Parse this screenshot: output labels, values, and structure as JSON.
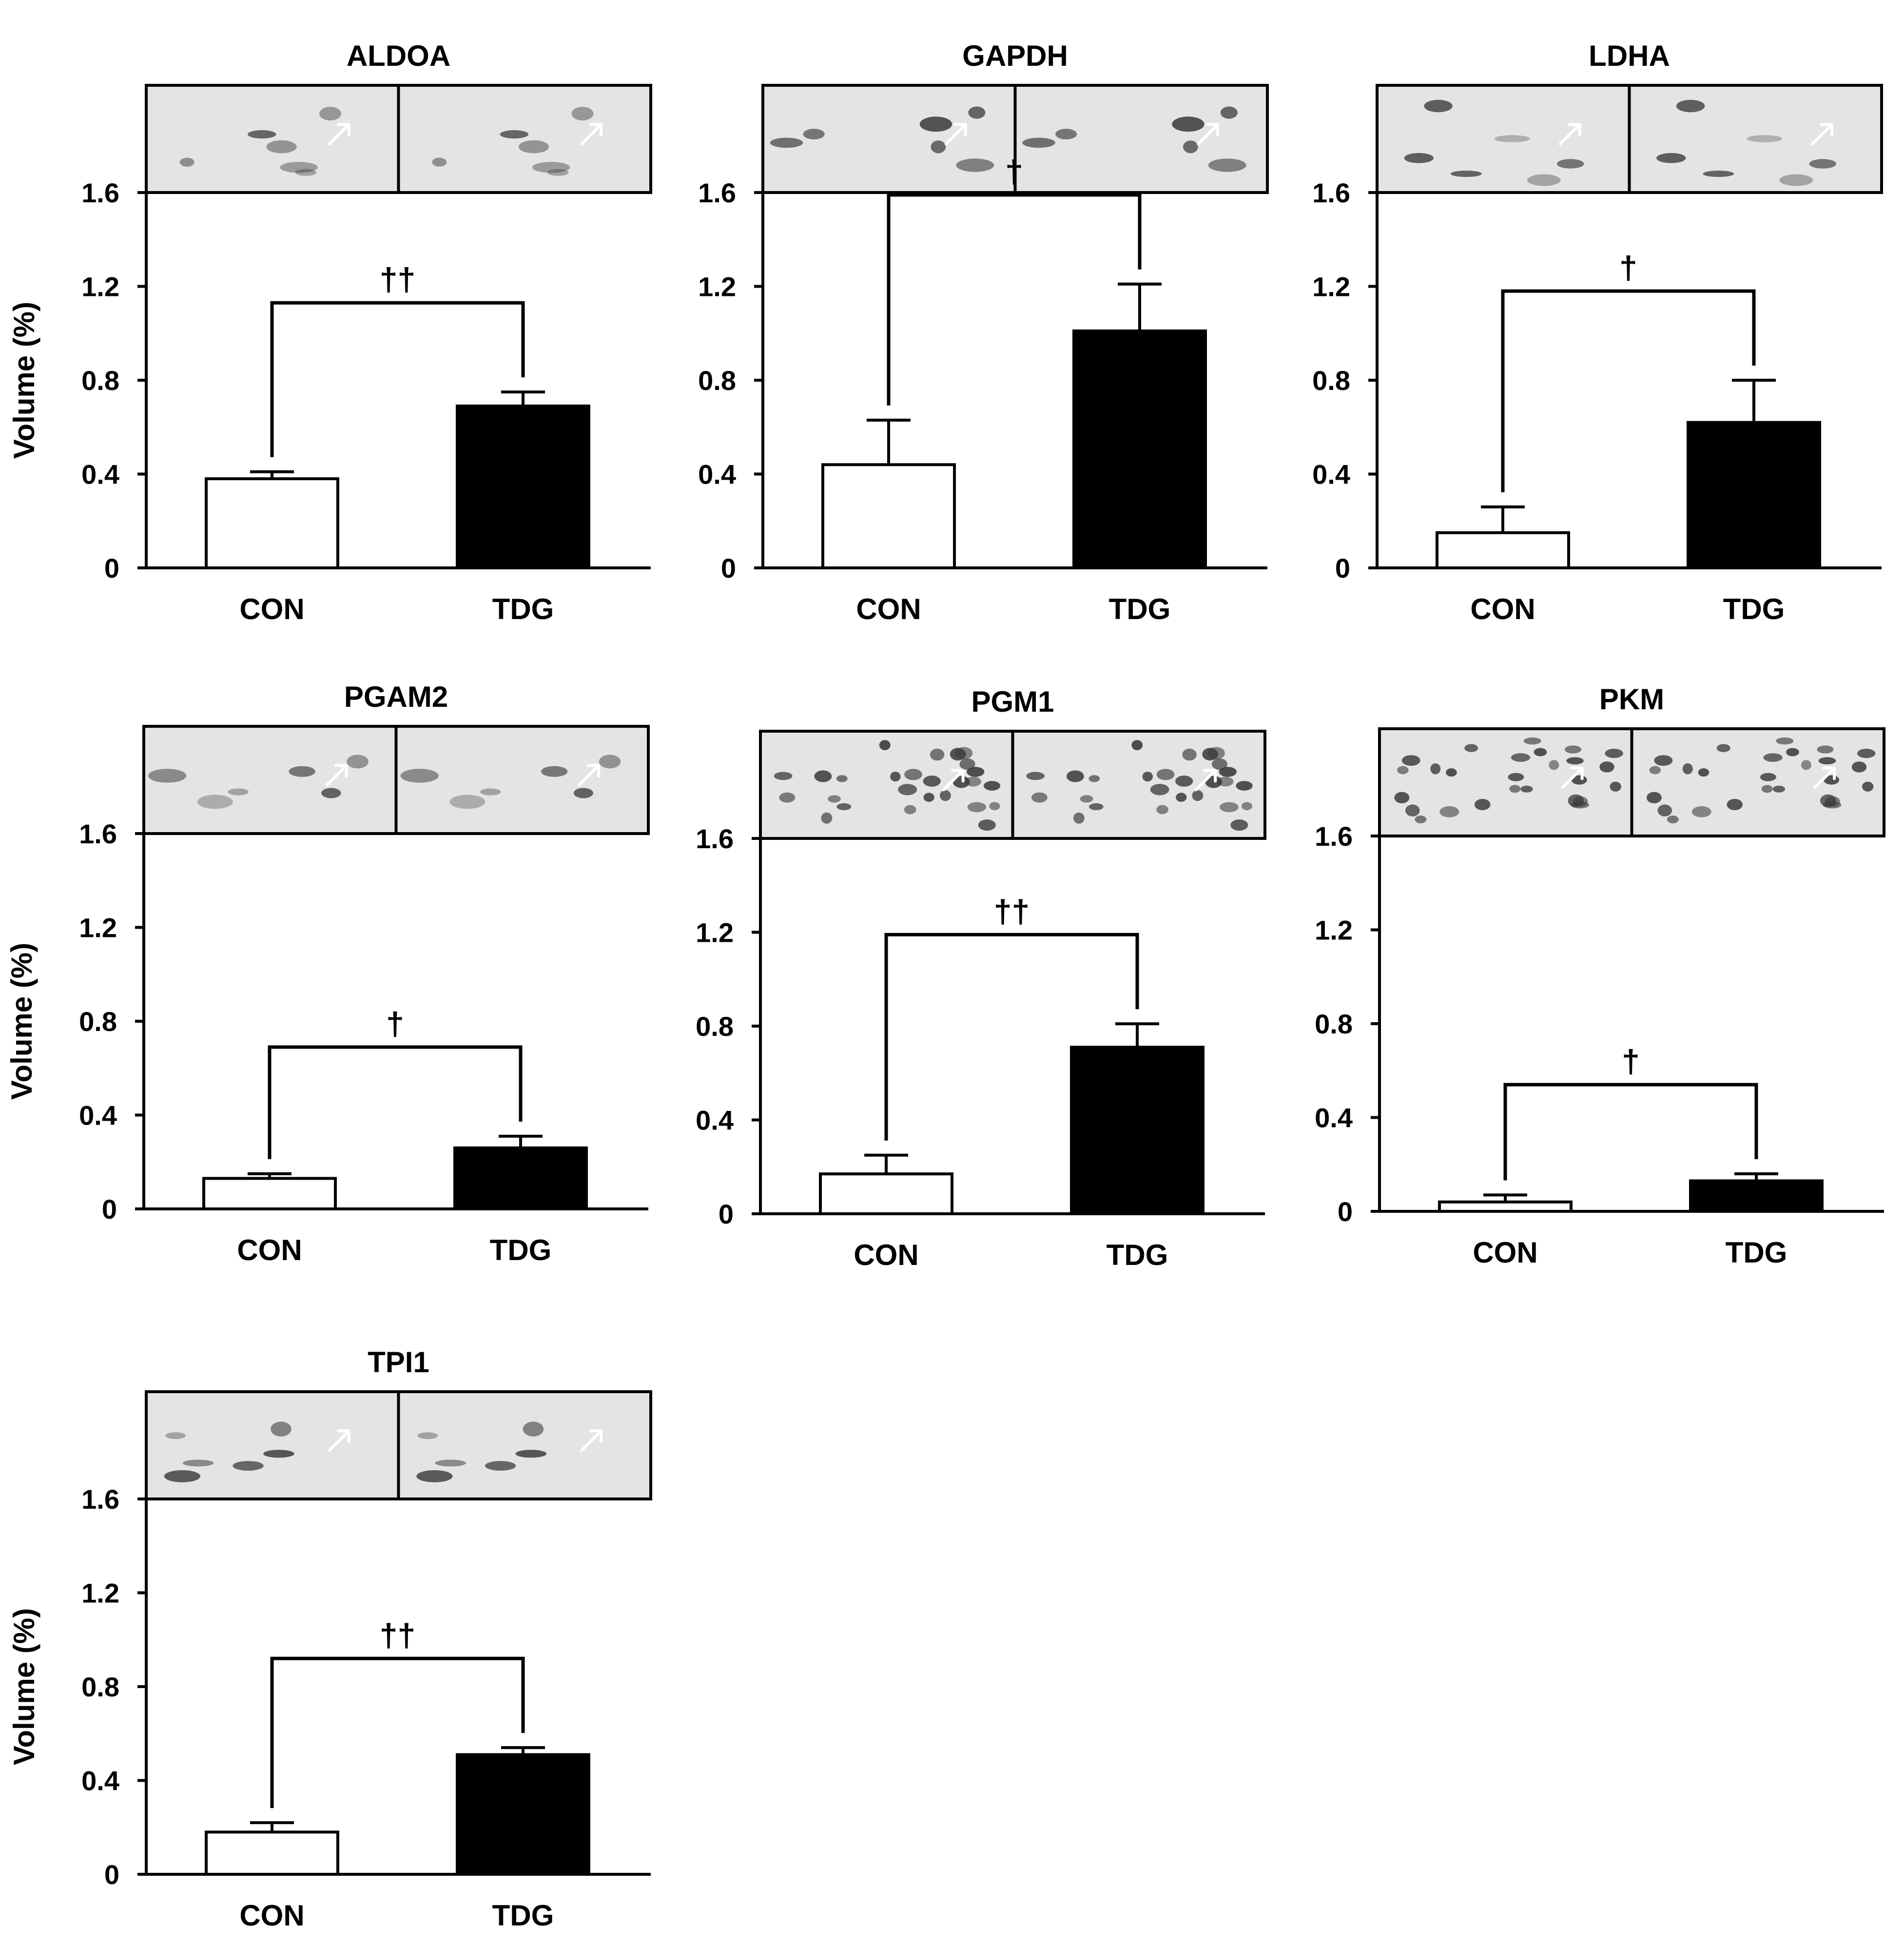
{
  "colors": {
    "axis": "#000000",
    "con_bar": "#ffffff",
    "tdg_bar": "#000000",
    "gel_background": "#e4e4e4",
    "gel_spot": "#3a3a3a",
    "arrow": "#ffffff"
  },
  "chart_data": [
    {
      "type": "bar",
      "title": "ALDOA",
      "ylabel": "Volume (%)",
      "categories": [
        "CON",
        "TDG"
      ],
      "values": [
        0.38,
        0.69
      ],
      "errors": [
        0.03,
        0.06
      ],
      "ylim": [
        0,
        1.6
      ],
      "yticks": [
        "0",
        "0.4",
        "0.8",
        "1.2",
        "1.6"
      ],
      "significance": "††",
      "gel_inset": true
    },
    {
      "type": "bar",
      "title": "GAPDH",
      "ylabel": "",
      "categories": [
        "CON",
        "TDG"
      ],
      "values": [
        0.44,
        1.01
      ],
      "errors": [
        0.19,
        0.2
      ],
      "ylim": [
        0,
        1.6
      ],
      "yticks": [
        "0",
        "0.4",
        "0.8",
        "1.2",
        "1.6"
      ],
      "significance": "†",
      "gel_inset": true
    },
    {
      "type": "bar",
      "title": "LDHA",
      "ylabel": "",
      "categories": [
        "CON",
        "TDG"
      ],
      "values": [
        0.15,
        0.62
      ],
      "errors": [
        0.11,
        0.18
      ],
      "ylim": [
        0,
        1.6
      ],
      "yticks": [
        "0",
        "0.4",
        "0.8",
        "1.2",
        "1.6"
      ],
      "significance": "†",
      "gel_inset": true
    },
    {
      "type": "bar",
      "title": "PGAM2",
      "ylabel": "Volume (%)",
      "categories": [
        "CON",
        "TDG"
      ],
      "values": [
        0.13,
        0.26
      ],
      "errors": [
        0.02,
        0.05
      ],
      "ylim": [
        0,
        1.6
      ],
      "yticks": [
        "0",
        "0.4",
        "0.8",
        "1.2",
        "1.6"
      ],
      "significance": "†",
      "gel_inset": true
    },
    {
      "type": "bar",
      "title": "PGM1",
      "ylabel": "",
      "categories": [
        "CON",
        "TDG"
      ],
      "values": [
        0.17,
        0.71
      ],
      "errors": [
        0.08,
        0.1
      ],
      "ylim": [
        0,
        1.6
      ],
      "yticks": [
        "0",
        "0.4",
        "0.8",
        "1.2",
        "1.6"
      ],
      "significance": "††",
      "gel_inset": true
    },
    {
      "type": "bar",
      "title": "PKM",
      "ylabel": "",
      "categories": [
        "CON",
        "TDG"
      ],
      "values": [
        0.04,
        0.13
      ],
      "errors": [
        0.03,
        0.03
      ],
      "ylim": [
        0,
        1.6
      ],
      "yticks": [
        "0",
        "0.4",
        "0.8",
        "1.2",
        "1.6"
      ],
      "significance": "†",
      "gel_inset": true
    },
    {
      "type": "bar",
      "title": "TPI1",
      "ylabel": "Volume (%)",
      "categories": [
        "CON",
        "TDG"
      ],
      "values": [
        0.18,
        0.51
      ],
      "errors": [
        0.04,
        0.03
      ],
      "ylim": [
        0,
        1.6
      ],
      "yticks": [
        "0",
        "0.4",
        "0.8",
        "1.2",
        "1.6"
      ],
      "significance": "††",
      "gel_inset": true
    }
  ]
}
